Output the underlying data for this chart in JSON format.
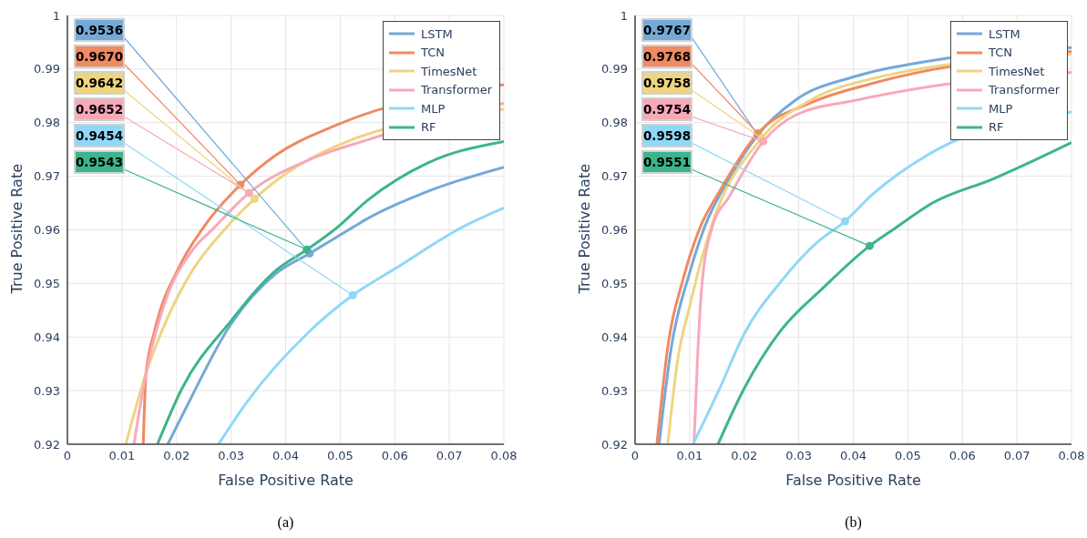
{
  "chart_data": [
    {
      "type": "line",
      "xlabel": "False Positive Rate",
      "ylabel": "True Positive Rate",
      "xlim": [
        0,
        0.08
      ],
      "xticks": [
        0,
        0.01,
        0.02,
        0.03,
        0.04,
        0.05,
        0.06,
        0.07,
        0.08
      ],
      "ylim": [
        0.92,
        1
      ],
      "yticks": [
        0.92,
        0.93,
        0.94,
        0.95,
        0.96,
        0.97,
        0.98,
        0.99,
        1
      ],
      "grid": true,
      "legend": "top right",
      "marker": "none",
      "line_style": "solid",
      "series": [
        {
          "name": "LSTM",
          "color": "#74a9d8",
          "x": [
            0.0184,
            0.0216,
            0.0299,
            0.0383,
            0.0444,
            0.0522,
            0.055,
            0.0661,
            0.08
          ],
          "values": [
            0.92,
            0.9265,
            0.9423,
            0.9519,
            0.9556,
            0.9604,
            0.9621,
            0.9672,
            0.9717
          ]
        },
        {
          "name": "TCN",
          "color": "#ef8a62",
          "x": [
            0.0139,
            0.0144,
            0.016,
            0.0205,
            0.0249,
            0.0317,
            0.0383,
            0.0494,
            0.08
          ],
          "values": [
            0.92,
            0.9332,
            0.9412,
            0.9531,
            0.9604,
            0.9684,
            0.974,
            0.9796,
            0.9871
          ]
        },
        {
          "name": "TimesNet",
          "color": "#eed580",
          "x": [
            0.0107,
            0.0144,
            0.0171,
            0.0216,
            0.0291,
            0.0343,
            0.0411,
            0.0494,
            0.08
          ],
          "values": [
            0.92,
            0.9332,
            0.9406,
            0.9502,
            0.9604,
            0.9658,
            0.9712,
            0.9757,
            0.9825
          ]
        },
        {
          "name": "Transformer",
          "color": "#f9a8b8",
          "x": [
            0.0122,
            0.0144,
            0.0182,
            0.0227,
            0.0269,
            0.0333,
            0.0439,
            0.055,
            0.08
          ],
          "values": [
            0.92,
            0.9332,
            0.9474,
            0.9559,
            0.9604,
            0.9669,
            0.9729,
            0.9768,
            0.9836
          ]
        },
        {
          "name": "MLP",
          "color": "#8fd8f8",
          "x": [
            0.0277,
            0.0327,
            0.0439,
            0.0523,
            0.0606,
            0.0722,
            0.08
          ],
          "values": [
            0.92,
            0.9276,
            0.9406,
            0.9478,
            0.9531,
            0.9604,
            0.9641
          ]
        },
        {
          "name": "RF",
          "color": "#3db58c",
          "x": [
            0.0165,
            0.021,
            0.0299,
            0.0383,
            0.0439,
            0.0494,
            0.055,
            0.0661,
            0.08
          ],
          "values": [
            0.92,
            0.9304,
            0.9429,
            0.9525,
            0.9563,
            0.9604,
            0.9655,
            0.9725,
            0.9765
          ]
        }
      ],
      "annotations": [
        {
          "text": "0.9536",
          "x": 0.0444,
          "y": 0.9556
        },
        {
          "text": "0.9670",
          "x": 0.0317,
          "y": 0.9684
        },
        {
          "text": "0.9642",
          "x": 0.0343,
          "y": 0.9658
        },
        {
          "text": "0.9652",
          "x": 0.0333,
          "y": 0.9669
        },
        {
          "text": "0.9454",
          "x": 0.0523,
          "y": 0.9478
        },
        {
          "text": "0.9543",
          "x": 0.0439,
          "y": 0.9563
        },
        "(a)"
      ]
    },
    {
      "type": "line",
      "xlabel": "False Positive Rate",
      "ylabel": "True Positive Rate",
      "xlim": [
        0,
        0.08
      ],
      "xticks": [
        0,
        0.01,
        0.02,
        0.03,
        0.04,
        0.05,
        0.06,
        0.07,
        0.08
      ],
      "ylim": [
        0.92,
        1
      ],
      "yticks": [
        0.92,
        0.93,
        0.94,
        0.95,
        0.96,
        0.97,
        0.98,
        0.99,
        1
      ],
      "grid": true,
      "legend": "top right",
      "marker": "none",
      "line_style": "solid",
      "series": [
        {
          "name": "LSTM",
          "color": "#74a9d8",
          "x": [
            0.0044,
            0.0066,
            0.01,
            0.0127,
            0.0172,
            0.0225,
            0.0294,
            0.0406,
            0.0545,
            0.08
          ],
          "values": [
            0.92,
            0.9378,
            0.952,
            0.9604,
            0.9695,
            0.9777,
            0.9842,
            0.9887,
            0.9916,
            0.994
          ]
        },
        {
          "name": "TCN",
          "color": "#ef8a62",
          "x": [
            0.004,
            0.0061,
            0.0088,
            0.0119,
            0.0155,
            0.0225,
            0.0322,
            0.0434,
            0.08
          ],
          "values": [
            0.92,
            0.9389,
            0.9508,
            0.9604,
            0.9672,
            0.978,
            0.9837,
            0.9873,
            0.9933
          ]
        },
        {
          "name": "TimesNet",
          "color": "#eed580",
          "x": [
            0.006,
            0.0077,
            0.01,
            0.0139,
            0.0232,
            0.0322,
            0.0434,
            0.08
          ],
          "values": [
            0.92,
            0.935,
            0.9457,
            0.9604,
            0.9771,
            0.9842,
            0.9882,
            0.9928
          ]
        },
        {
          "name": "Transformer",
          "color": "#f9a8b8",
          "x": [
            0.0108,
            0.0114,
            0.0122,
            0.0141,
            0.0172,
            0.0235,
            0.0294,
            0.0406,
            0.0545,
            0.08
          ],
          "values": [
            0.92,
            0.935,
            0.9491,
            0.9604,
            0.9661,
            0.9765,
            0.9814,
            0.9842,
            0.9868,
            0.9894
          ]
        },
        {
          "name": "MLP",
          "color": "#8fd8f8",
          "x": [
            0.0106,
            0.0155,
            0.02,
            0.0267,
            0.0333,
            0.0385,
            0.0434,
            0.0545,
            0.08
          ],
          "values": [
            0.92,
            0.9304,
            0.9406,
            0.9503,
            0.9576,
            0.9616,
            0.9665,
            0.9745,
            0.982
          ]
        },
        {
          "name": "RF",
          "color": "#3db58c",
          "x": [
            0.0152,
            0.02,
            0.0267,
            0.0344,
            0.043,
            0.0478,
            0.0545,
            0.0656,
            0.08
          ],
          "values": [
            0.92,
            0.9304,
            0.9412,
            0.9491,
            0.957,
            0.9604,
            0.965,
            0.9695,
            0.9763
          ]
        }
      ],
      "annotations": [
        {
          "text": "0.9767",
          "x": 0.0225,
          "y": 0.9777
        },
        {
          "text": "0.9768",
          "x": 0.0225,
          "y": 0.978
        },
        {
          "text": "0.9758",
          "x": 0.0232,
          "y": 0.9771
        },
        {
          "text": "0.9754",
          "x": 0.0235,
          "y": 0.9765
        },
        {
          "text": "0.9598",
          "x": 0.0385,
          "y": 0.9616
        },
        {
          "text": "0.9551",
          "x": 0.043,
          "y": 0.957
        },
        "(b)"
      ]
    }
  ]
}
